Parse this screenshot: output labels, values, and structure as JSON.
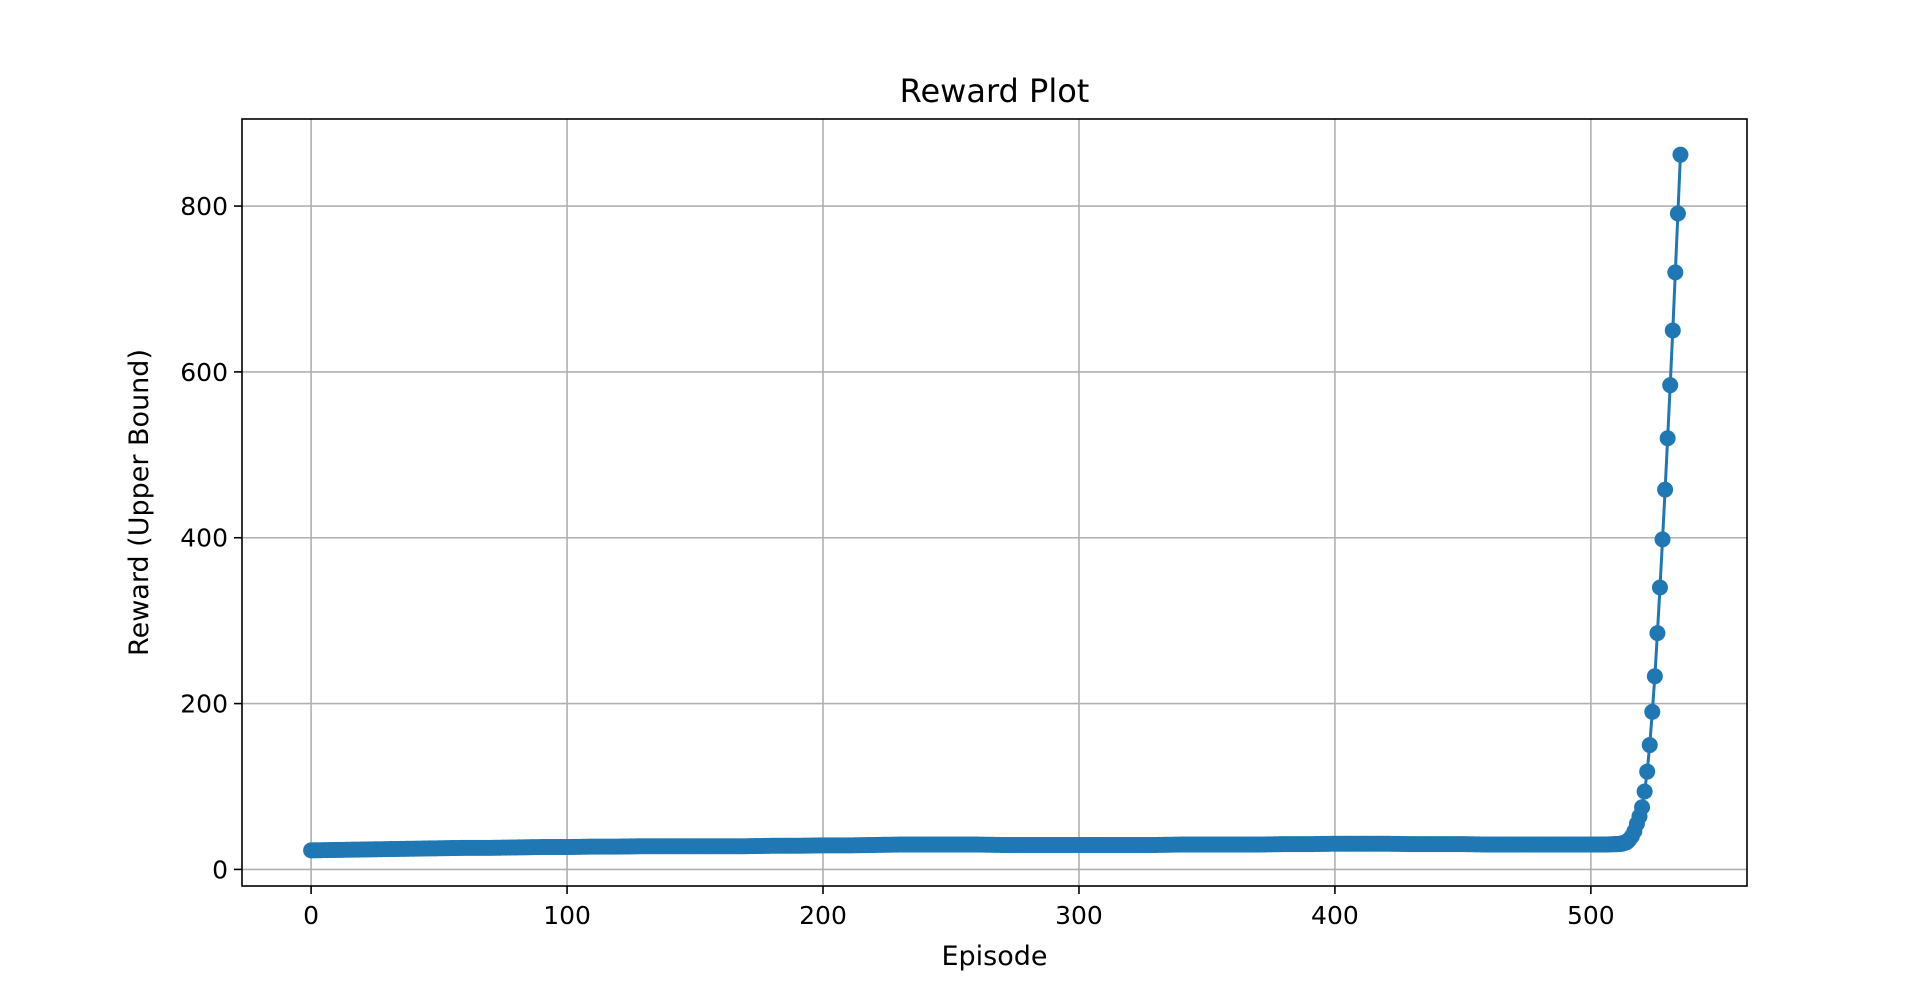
{
  "chart_data": {
    "type": "line",
    "title": "Reward Plot",
    "xlabel": "Episode",
    "ylabel": "Reward (Upper Bound)",
    "xlim": [
      -27,
      561
    ],
    "ylim": [
      -20,
      905
    ],
    "x_ticks": [
      0,
      100,
      200,
      300,
      400,
      500
    ],
    "y_ticks": [
      0,
      200,
      400,
      600,
      800
    ],
    "grid": true,
    "marker": "circle",
    "series": [
      {
        "color": "#1f77b4",
        "points": [
          [
            0,
            23
          ],
          [
            10,
            23.5
          ],
          [
            20,
            24
          ],
          [
            30,
            24.5
          ],
          [
            40,
            25
          ],
          [
            50,
            25.5
          ],
          [
            60,
            26
          ],
          [
            70,
            26
          ],
          [
            80,
            26.5
          ],
          [
            90,
            27
          ],
          [
            100,
            27
          ],
          [
            110,
            27.5
          ],
          [
            120,
            27.5
          ],
          [
            130,
            28
          ],
          [
            140,
            28
          ],
          [
            150,
            28
          ],
          [
            160,
            28
          ],
          [
            170,
            28
          ],
          [
            180,
            28.5
          ],
          [
            190,
            28.5
          ],
          [
            200,
            29
          ],
          [
            210,
            29
          ],
          [
            220,
            29.5
          ],
          [
            230,
            30
          ],
          [
            240,
            30
          ],
          [
            250,
            30
          ],
          [
            260,
            30
          ],
          [
            270,
            29.5
          ],
          [
            280,
            29.5
          ],
          [
            290,
            29.5
          ],
          [
            300,
            29.5
          ],
          [
            310,
            29.5
          ],
          [
            320,
            29.5
          ],
          [
            330,
            29.5
          ],
          [
            340,
            30
          ],
          [
            350,
            30
          ],
          [
            360,
            30
          ],
          [
            370,
            30
          ],
          [
            380,
            30.5
          ],
          [
            390,
            30.5
          ],
          [
            400,
            31
          ],
          [
            410,
            31
          ],
          [
            420,
            31
          ],
          [
            430,
            30.5
          ],
          [
            440,
            30.5
          ],
          [
            450,
            30.5
          ],
          [
            460,
            30
          ],
          [
            470,
            30
          ],
          [
            480,
            30
          ],
          [
            490,
            30
          ],
          [
            500,
            30
          ],
          [
            505,
            30
          ],
          [
            510,
            30.5
          ],
          [
            512,
            31
          ],
          [
            513,
            32
          ],
          [
            514,
            33
          ],
          [
            515,
            36
          ],
          [
            516,
            40
          ],
          [
            517,
            46
          ],
          [
            518,
            55
          ],
          [
            519,
            64
          ],
          [
            520,
            75
          ],
          [
            521,
            94
          ],
          [
            522,
            118
          ],
          [
            523,
            150
          ],
          [
            524,
            190
          ],
          [
            525,
            233
          ],
          [
            526,
            285
          ],
          [
            527,
            340
          ],
          [
            528,
            398
          ],
          [
            529,
            458
          ],
          [
            530,
            520
          ],
          [
            531,
            584
          ],
          [
            532,
            650
          ],
          [
            533,
            720
          ],
          [
            534,
            791
          ],
          [
            535,
            862
          ]
        ]
      }
    ]
  }
}
